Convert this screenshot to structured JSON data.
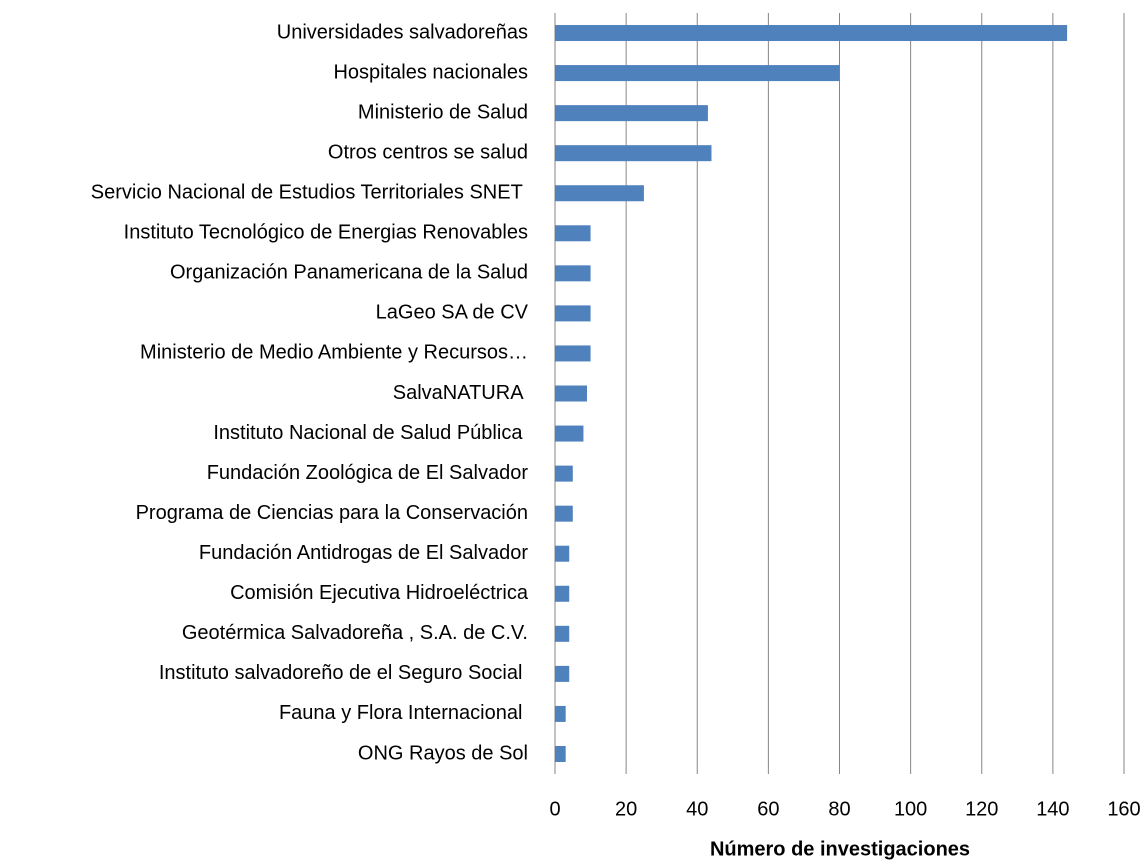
{
  "chart_data": {
    "type": "bar",
    "orientation": "horizontal",
    "x_axis_label": "Número de investigaciones",
    "categories": [
      "Universidades salvadoreñas",
      "Hospitales nacionales",
      "Ministerio de Salud",
      "Otros centros se salud",
      "Servicio Nacional de Estudios Territoriales SNET ",
      "Instituto Tecnológico de Energias Renovables",
      "Organización Panamericana de la Salud",
      "LaGeo SA de CV",
      "Ministerio de Medio Ambiente y Recursos…",
      "SalvaNATURA ",
      "Instituto Nacional de Salud Pública ",
      "Fundación Zoológica de El Salvador",
      "Programa de Ciencias para la Conservación",
      "Fundación Antidrogas de El Salvador",
      "Comisión Ejecutiva Hidroeléctrica",
      "Geotérmica Salvadoreña , S.A. de C.V.",
      "Instituto salvadoreño de el Seguro Social ",
      "Fauna y Flora Internacional ",
      "ONG Rayos de Sol"
    ],
    "values": [
      144,
      80,
      43,
      44,
      25,
      10,
      10,
      10,
      10,
      9,
      8,
      5,
      5,
      4,
      4,
      4,
      4,
      3,
      3
    ],
    "color": "#4f81bd",
    "xlim": [
      0,
      160
    ],
    "xticks": [
      0,
      20,
      40,
      60,
      80,
      100,
      120,
      140,
      160
    ],
    "grid": true
  }
}
